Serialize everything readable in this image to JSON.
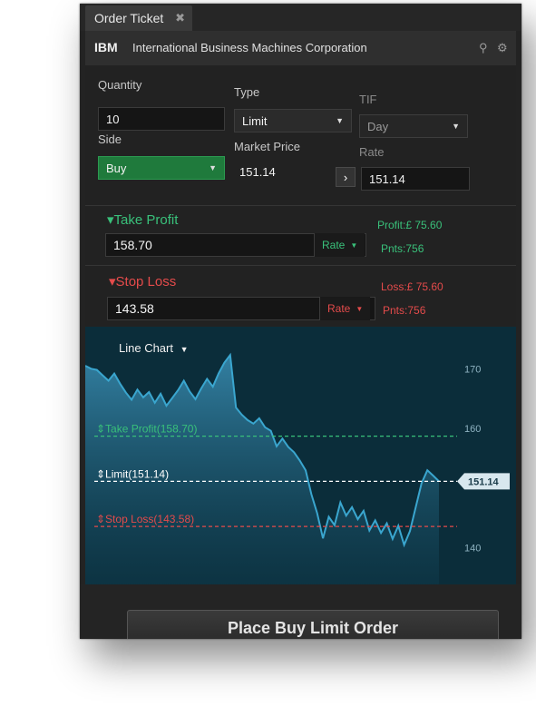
{
  "window": {
    "tab_title": "Order Ticket",
    "close_glyph": "✖"
  },
  "header": {
    "symbol": "IBM",
    "company": "International Business Machines Corporation",
    "search_glyph": "⚲",
    "settings_glyph": "⚙"
  },
  "form": {
    "quantity_label": "Quantity",
    "quantity_value": "10",
    "type_label": "Type",
    "type_value": "Limit",
    "tif_label": "TIF",
    "tif_value": "Day",
    "side_label": "Side",
    "side_value": "Buy",
    "market_price_label": "Market Price",
    "market_price_value": "151.14",
    "rate_label": "Rate",
    "rate_value": "151.14",
    "copy_arrow": "›"
  },
  "take_profit": {
    "title": "Take Profit",
    "value": "158.70",
    "rate_label": "Rate",
    "profit_text": "Profit:£ 75.60",
    "points_text": "Pnts:756"
  },
  "stop_loss": {
    "title": "Stop Loss",
    "value": "143.58",
    "rate_label": "Rate",
    "loss_text": "Loss:£ 75.60",
    "points_text": "Pnts:756"
  },
  "chart_data": {
    "type": "area",
    "selector_label": "Line Chart",
    "y_ticks": [
      "170",
      "160",
      "140"
    ],
    "ylim": [
      136,
      174
    ],
    "current_price_label": "151.14",
    "levels": [
      {
        "name": "Take Profit(158.70)",
        "value": 158.7,
        "color": "#39c07a"
      },
      {
        "name": "Limit(151.14)",
        "value": 151.14,
        "color": "#ffffff"
      },
      {
        "name": "Stop Loss(143.58)",
        "value": 143.58,
        "color": "#e44b4b"
      }
    ],
    "values": [
      170.5,
      170.0,
      169.8,
      168.9,
      168.0,
      169.2,
      167.5,
      166.0,
      164.8,
      166.5,
      165.2,
      166.1,
      164.3,
      165.8,
      163.8,
      165.1,
      166.4,
      168.0,
      166.2,
      164.9,
      166.7,
      168.3,
      167.0,
      169.2,
      171.0,
      172.3,
      163.5,
      162.3,
      161.4,
      160.8,
      161.7,
      160.2,
      159.6,
      157.0,
      158.3,
      156.9,
      156.0,
      154.6,
      153.0,
      149.0,
      145.8,
      141.6,
      145.2,
      143.8,
      147.6,
      145.4,
      146.8,
      144.8,
      146.2,
      142.9,
      144.6,
      142.5,
      144.1,
      141.5,
      143.7,
      140.5,
      142.8,
      146.8,
      150.8,
      153.0,
      152.1,
      151.14
    ]
  },
  "colors": {
    "green_accent": "#39c07a",
    "red_accent": "#e44b4b",
    "buy_green": "#1f7a3c",
    "chart_bg": "#0b2d3a",
    "series": "#3aa6cf"
  },
  "footer": {
    "place_order_label": "Place Buy Limit Order"
  }
}
